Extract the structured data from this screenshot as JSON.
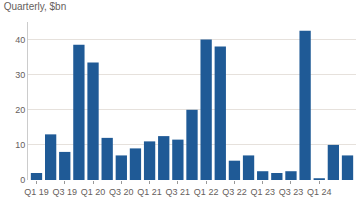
{
  "chart_data": {
    "type": "bar",
    "subtitle": "Quarterly, $bn",
    "categories": [
      "Q1 19",
      null,
      "Q3 19",
      null,
      "Q1 20",
      null,
      "Q3 20",
      null,
      "Q1 21",
      null,
      "Q3 21",
      null,
      "Q1 22",
      null,
      "Q3 22",
      null,
      "Q1 23",
      null,
      "Q3 23",
      null,
      "Q1 24",
      null,
      null
    ],
    "values": [
      2,
      13,
      8,
      38.5,
      33.5,
      12,
      7,
      9,
      11,
      12.5,
      11.5,
      20,
      40,
      38,
      5.5,
      7,
      2.5,
      2,
      2.5,
      42.5,
      0.5,
      10,
      7
    ],
    "color": "#1f5a96",
    "ylim": [
      0,
      45
    ],
    "yticks": [
      0,
      10,
      20,
      30,
      40
    ],
    "grid": true
  }
}
